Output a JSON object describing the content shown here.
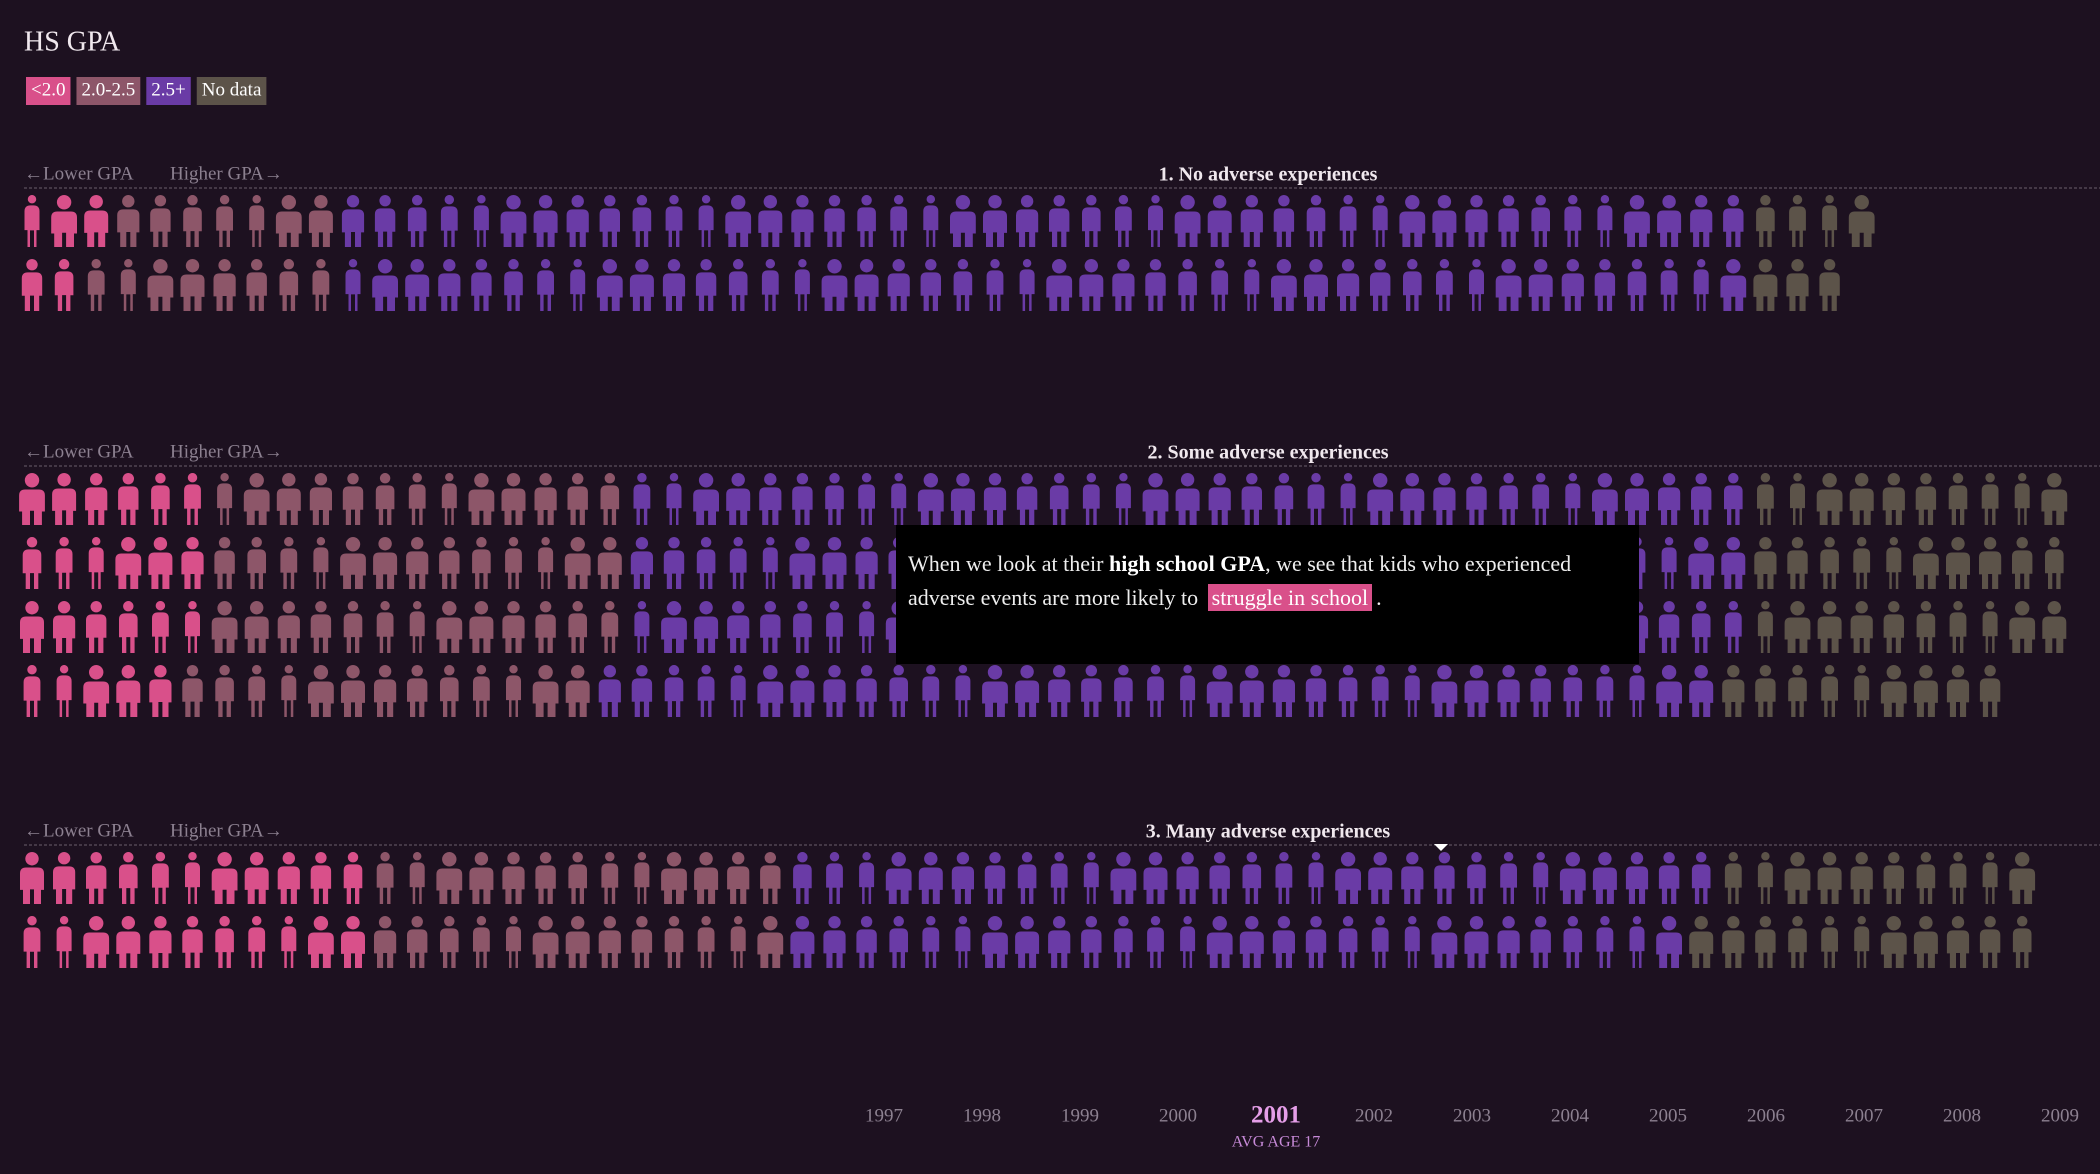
{
  "header": {
    "title": "HS GPA"
  },
  "legend": [
    {
      "label": "<2.0",
      "color": "#d9508a"
    },
    {
      "label": "2.0-2.5",
      "color": "#8d5669"
    },
    {
      "label": "2.5+",
      "color": "#6a3ba6"
    },
    {
      "label": "No data",
      "color": "#5c5349"
    }
  ],
  "groups": [
    {
      "title": "1. No adverse experiences",
      "lower_label": "←Lower GPA",
      "higher_label": "Higher GPA→",
      "rows": [
        [
          3,
          7,
          44,
          4
        ],
        [
          2,
          8,
          44,
          3
        ]
      ]
    },
    {
      "title": "2. Some adverse experiences",
      "lower_label": "←Lower GPA",
      "higher_label": "Higher GPA→",
      "rows": [
        [
          6,
          13,
          35,
          10
        ],
        [
          6,
          13,
          35,
          10
        ],
        [
          6,
          13,
          35,
          10
        ],
        [
          5,
          13,
          35,
          9
        ]
      ]
    },
    {
      "title": "3. Many adverse experiences",
      "lower_label": "←Lower GPA",
      "higher_label": "Higher GPA→",
      "rows": [
        [
          11,
          13,
          29,
          10
        ],
        [
          11,
          13,
          28,
          11
        ]
      ]
    }
  ],
  "tooltip": {
    "parts": [
      "When we look at their ",
      "high school GPA",
      ", we see that kids who experienced adverse events are more likely to ",
      "struggle in school",
      "."
    ]
  },
  "timeline": {
    "years": [
      1997,
      1998,
      1999,
      2000,
      2001,
      2002,
      2003,
      2004,
      2005,
      2006,
      2007,
      2008,
      2009
    ],
    "selected_index": 4,
    "selected_note": "AVG AGE 17"
  }
}
